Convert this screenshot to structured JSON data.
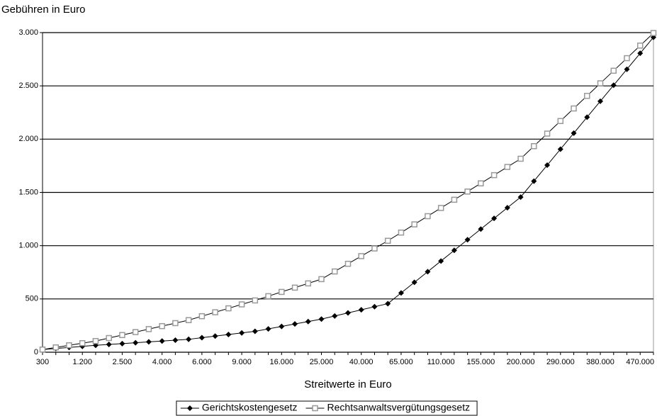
{
  "chart_data": {
    "type": "line",
    "y_label": "Gebühren in Euro",
    "x_label": "Streitwerte in Euro",
    "categories": [
      "300",
      null,
      null,
      "1.200",
      null,
      null,
      "2.500",
      null,
      null,
      "4.000",
      null,
      null,
      "6.000",
      null,
      null,
      "9.000",
      null,
      null,
      "16.000",
      null,
      null,
      "25.000",
      null,
      null,
      "40.000",
      null,
      null,
      "65.000",
      null,
      null,
      "110.000",
      null,
      null,
      "155.000",
      null,
      null,
      "200.000",
      null,
      null,
      "290.000",
      null,
      null,
      "380.000",
      null,
      null,
      "470.000",
      null
    ],
    "series": [
      {
        "name": "Gerichtskostengesetz",
        "color": "#000000",
        "marker": "diamond",
        "values": [
          25,
          35,
          45,
          55,
          65,
          73,
          81,
          89,
          97,
          105,
          113,
          121,
          136,
          151,
          166,
          181,
          196,
          219,
          242,
          265,
          288,
          311,
          340,
          369,
          398,
          427,
          456,
          556,
          656,
          756,
          856,
          956,
          1056,
          1156,
          1256,
          1356,
          1456,
          1606,
          1756,
          1906,
          2056,
          2206,
          2356,
          2506,
          2656,
          2806,
          2956
        ]
      },
      {
        "name": "Rechtsanwaltsvergütungsgesetz",
        "color": "#999999",
        "marker": "square",
        "values": [
          25,
          45,
          65,
          85,
          105,
          133,
          161,
          189,
          217,
          245,
          273,
          301,
          338,
          375,
          412,
          449,
          486,
          526,
          566,
          606,
          646,
          686,
          758,
          830,
          902,
          974,
          1046,
          1123,
          1200,
          1277,
          1354,
          1431,
          1508,
          1585,
          1662,
          1739,
          1816,
          1934,
          2052,
          2170,
          2288,
          2406,
          2524,
          2642,
          2760,
          2878,
          2996
        ]
      }
    ],
    "ylim": [
      0,
      3000
    ],
    "yticks": [
      0,
      500,
      {
        "value": 1000,
        "label": "1.000"
      },
      {
        "value": 1500,
        "label": "1.500"
      },
      {
        "value": 2000,
        "label": "2.000"
      },
      {
        "value": 2500,
        "label": "2.500"
      },
      {
        "value": 3000,
        "label": "3.000"
      }
    ],
    "grid": true,
    "legend": "bottom"
  }
}
